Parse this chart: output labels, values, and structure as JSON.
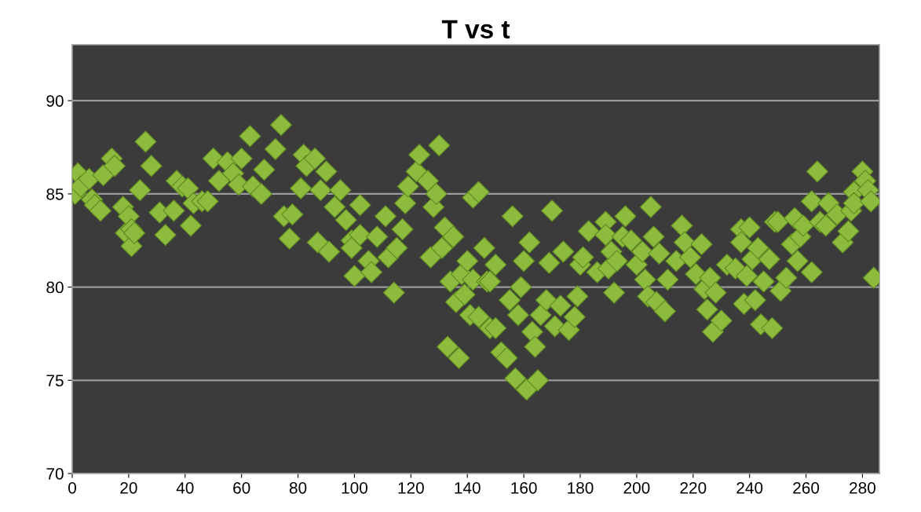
{
  "chart_data": {
    "type": "scatter",
    "title": "T vs t",
    "xlim": [
      0,
      286
    ],
    "xticks": [
      0,
      20,
      40,
      60,
      80,
      100,
      120,
      140,
      160,
      180,
      200,
      220,
      240,
      260,
      280
    ],
    "ylim": [
      70,
      93
    ],
    "yticks": [
      70,
      75,
      80,
      85,
      90
    ],
    "grid": "y",
    "marker": "diamond",
    "series": [
      {
        "color": "#8dbb3e",
        "x": [
          1,
          2,
          3,
          6,
          7,
          8,
          10,
          11,
          14,
          15,
          18,
          19,
          20,
          21,
          21,
          22,
          24,
          26,
          28,
          31,
          33,
          36,
          37,
          39,
          41,
          42,
          43,
          46,
          48,
          50,
          52,
          55,
          57,
          59,
          60,
          63,
          64,
          67,
          68,
          72,
          74,
          75,
          77,
          78,
          81,
          82,
          83,
          86,
          87,
          88,
          90,
          91,
          93,
          95,
          97,
          99,
          99,
          100,
          102,
          102,
          105,
          106,
          108,
          111,
          112,
          114,
          115,
          117,
          118,
          119,
          122,
          123,
          126,
          127,
          128,
          129,
          130,
          131,
          132,
          133,
          134,
          135,
          136,
          137,
          138,
          139,
          140,
          141,
          142,
          142,
          144,
          144,
          146,
          147,
          148,
          148,
          150,
          150,
          152,
          154,
          155,
          156,
          157,
          158,
          159,
          160,
          161,
          162,
          163,
          164,
          165,
          166,
          168,
          169,
          170,
          171,
          173,
          174,
          176,
          178,
          179,
          180,
          181,
          183,
          186,
          189,
          189,
          190,
          191,
          192,
          193,
          195,
          196,
          198,
          200,
          202,
          203,
          204,
          205,
          206,
          207,
          208,
          210,
          211,
          214,
          216,
          217,
          219,
          221,
          223,
          224,
          225,
          226,
          227,
          228,
          230,
          232,
          235,
          237,
          237,
          238,
          239,
          240,
          241,
          242,
          243,
          244,
          245,
          247,
          248,
          249,
          250,
          251,
          253,
          255,
          256,
          257,
          258,
          259,
          262,
          262,
          264,
          265,
          267,
          268,
          271,
          273,
          275,
          276,
          277,
          277,
          280,
          281,
          282,
          283,
          284
        ],
        "values": [
          85.0,
          86.1,
          85.4,
          85.8,
          84.7,
          84.4,
          84.1,
          86.0,
          86.9,
          86.5,
          84.3,
          82.9,
          83.8,
          82.2,
          83.1,
          82.9,
          85.2,
          87.8,
          86.5,
          84.0,
          82.8,
          84.1,
          85.7,
          85.4,
          85.3,
          83.3,
          84.5,
          84.6,
          84.6,
          86.9,
          85.7,
          86.7,
          86.1,
          85.5,
          86.9,
          88.1,
          85.4,
          85.0,
          86.3,
          87.4,
          88.7,
          83.8,
          82.6,
          83.9,
          85.3,
          87.1,
          86.5,
          86.9,
          82.4,
          85.2,
          86.2,
          81.9,
          84.3,
          85.2,
          83.6,
          82.5,
          82.1,
          80.6,
          84.4,
          82.8,
          81.4,
          80.8,
          82.7,
          83.8,
          81.6,
          79.7,
          82.1,
          83.1,
          84.5,
          85.4,
          86.2,
          87.1,
          85.7,
          81.6,
          84.3,
          85.0,
          87.6,
          82.1,
          83.2,
          76.8,
          80.3,
          82.7,
          79.2,
          76.2,
          80.7,
          79.6,
          81.4,
          78.5,
          80.4,
          84.8,
          85.1,
          78.4,
          82.1,
          80.3,
          77.8,
          80.3,
          77.8,
          81.2,
          76.5,
          76.2,
          79.3,
          83.8,
          75.1,
          78.5,
          80.0,
          81.4,
          74.5,
          82.4,
          77.6,
          76.8,
          75.0,
          78.5,
          79.3,
          81.3,
          84.1,
          77.9,
          79.0,
          81.9,
          77.7,
          78.4,
          79.5,
          81.2,
          81.6,
          83.0,
          80.8,
          83.5,
          82.8,
          81.0,
          81.9,
          79.7,
          81.4,
          82.7,
          83.8,
          82.5,
          81.2,
          81.9,
          80.4,
          79.5,
          84.3,
          82.7,
          79.2,
          81.8,
          78.7,
          80.4,
          81.4,
          83.3,
          82.4,
          81.6,
          80.7,
          82.3,
          79.9,
          78.8,
          80.5,
          77.6,
          79.7,
          78.2,
          81.2,
          81.0,
          83.1,
          82.4,
          79.1,
          80.6,
          83.2,
          81.5,
          79.3,
          82.1,
          78.0,
          80.3,
          81.5,
          77.8,
          83.5,
          83.5,
          79.8,
          80.5,
          82.3,
          83.7,
          81.4,
          82.7,
          83.3,
          80.8,
          84.6,
          86.2,
          83.5,
          83.3,
          84.5,
          83.9,
          82.4,
          83.0,
          84.1,
          85.1,
          84.5,
          86.2,
          85.7,
          85.2,
          84.6,
          80.5
        ]
      }
    ]
  }
}
